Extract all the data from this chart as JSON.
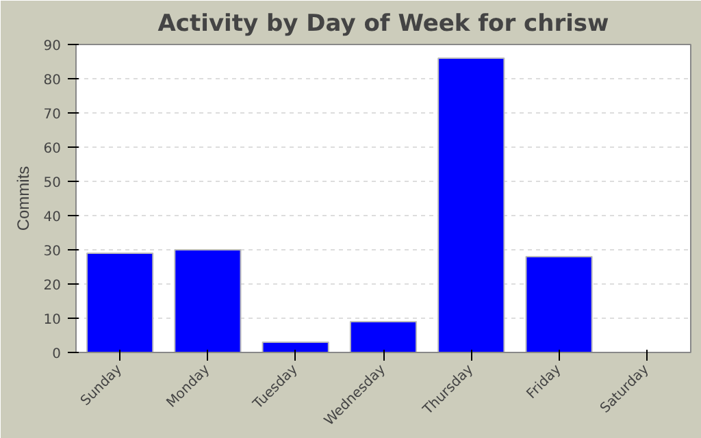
{
  "chart_data": {
    "type": "bar",
    "title": "Activity by Day of Week for chrisw",
    "ylabel": "Commits",
    "categories": [
      "Sunday",
      "Monday",
      "Tuesday",
      "Wednesday",
      "Thursday",
      "Friday",
      "Saturday"
    ],
    "values": [
      29,
      30,
      3,
      9,
      86,
      28,
      0
    ],
    "color": "#0000ff",
    "ylim": [
      0,
      90
    ],
    "yticks": [
      0,
      10,
      20,
      30,
      40,
      50,
      60,
      70,
      80,
      90
    ],
    "grid": "y"
  }
}
